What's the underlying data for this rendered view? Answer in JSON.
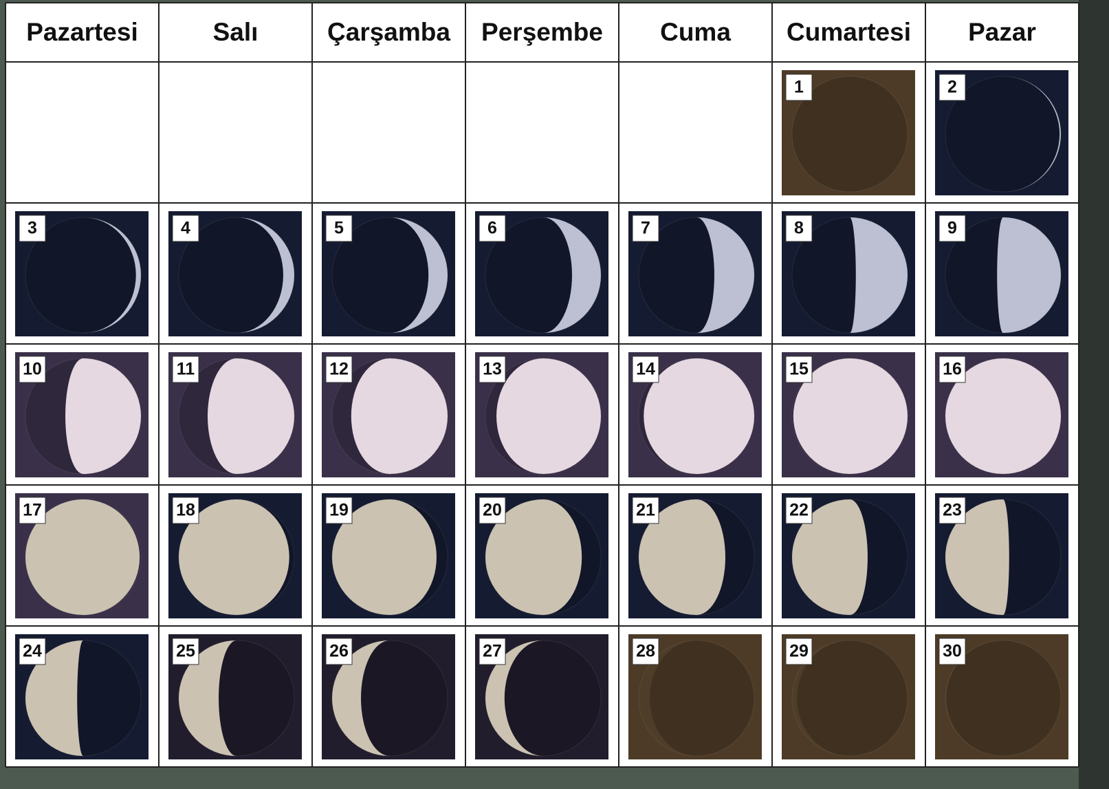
{
  "days": [
    "Pazartesi",
    "Salı",
    "Çarşamba",
    "Perşembe",
    "Cuma",
    "Cumartesi",
    "Pazar"
  ],
  "weeks": [
    [
      1,
      2
    ],
    [
      3,
      4,
      5,
      6,
      7,
      8,
      9
    ],
    [
      10,
      11,
      12,
      13,
      14,
      15,
      16
    ],
    [
      17,
      18,
      19,
      20,
      21,
      22,
      23
    ],
    [
      24,
      25,
      26,
      27,
      28,
      29,
      30
    ]
  ]
}
